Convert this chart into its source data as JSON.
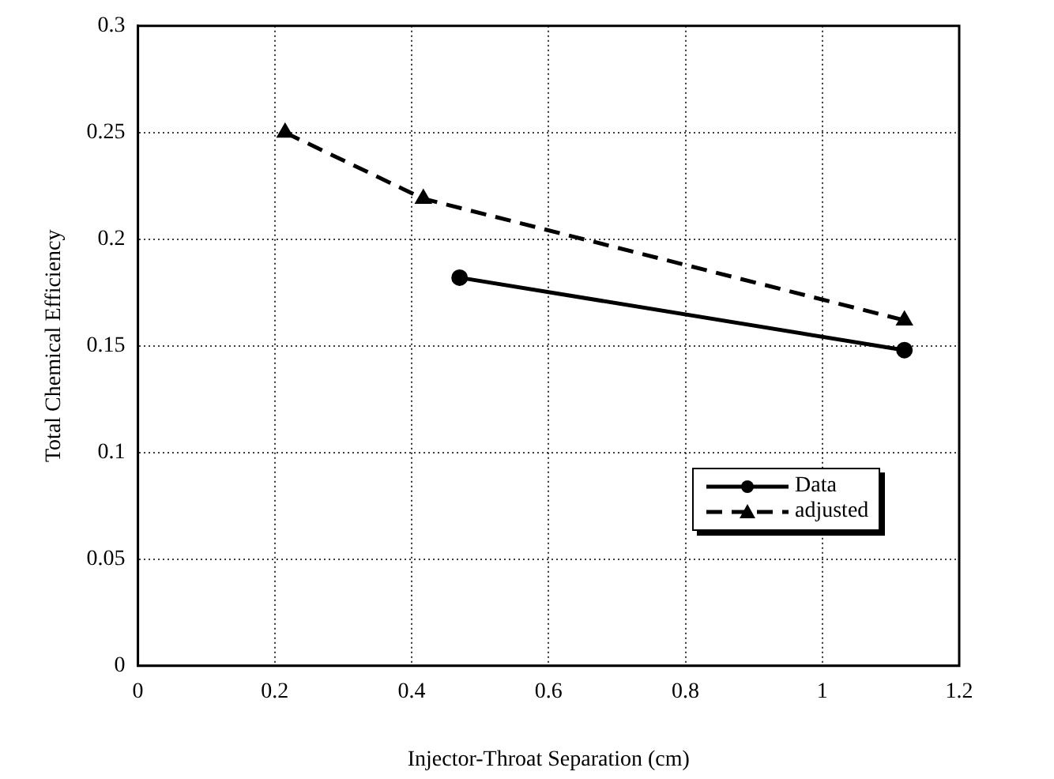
{
  "chart_data": {
    "type": "line",
    "xlabel": "Injector-Throat Separation (cm)",
    "ylabel": "Total Chemical Efficiency",
    "xlim": [
      0,
      1.2
    ],
    "xticks": [
      0,
      0.2,
      0.4,
      0.6,
      0.8,
      1,
      1.2
    ],
    "ylim": [
      0,
      0.3
    ],
    "yticks": [
      0,
      0.05,
      0.1,
      0.15,
      0.2,
      0.25,
      0.3
    ],
    "grid": true,
    "legend": "bottom right",
    "series": [
      {
        "name": "Data",
        "color": "#000000",
        "marker": "circle",
        "line_style": "solid",
        "x": [
          0.47,
          1.12
        ],
        "values": [
          0.182,
          0.148
        ]
      },
      {
        "name": "adjusted",
        "color": "#000000",
        "marker": "triangle",
        "line_style": "dashed",
        "x": [
          0.215,
          0.417,
          1.12
        ],
        "values": [
          0.25,
          0.219,
          0.162
        ]
      }
    ]
  }
}
